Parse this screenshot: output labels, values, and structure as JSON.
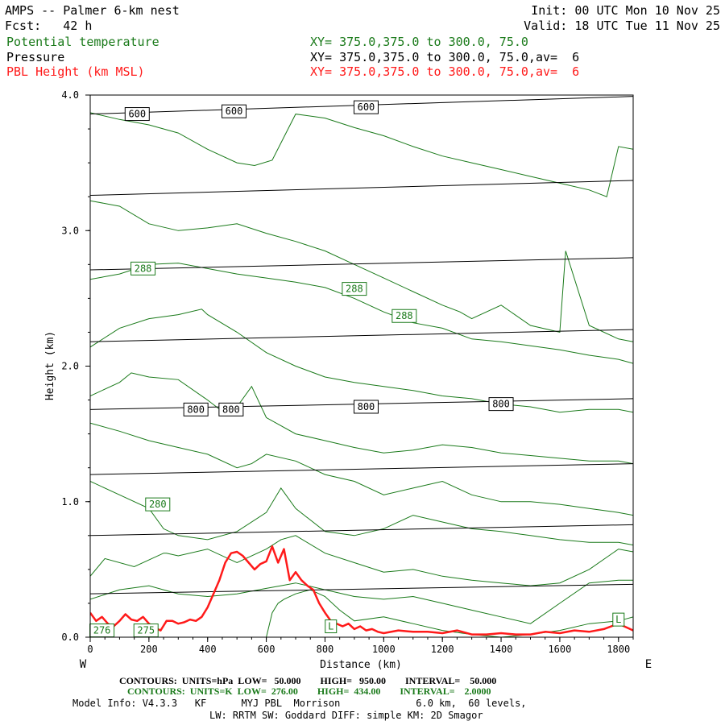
{
  "header": {
    "title": "AMPS -- Palmer 6-km nest",
    "fcst": "Fcst:   42 h",
    "init": "Init: 00 UTC Mon 10 Nov 25",
    "valid": "Valid: 18 UTC Tue 11 Nov 25",
    "fields": [
      {
        "name": "Potential temperature",
        "xy": "XY= 375.0,375.0 to 300.0, 75.0",
        "color": "#1a7a1a"
      },
      {
        "name": "Pressure",
        "xy": "XY= 375.0,375.0 to 300.0, 75.0,av=  6",
        "color": "#000000"
      },
      {
        "name": "PBL Height (km MSL)",
        "xy": "XY= 375.0,375.0 to 300.0, 75.0,av=  6",
        "color": "#ff1a1a"
      }
    ]
  },
  "footer": {
    "contours_pressure": "CONTOURS:  UNITS=hPa  LOW=   50.000        HIGH=   950.00        INTERVAL=    50.000",
    "contours_theta": "CONTOURS:  UNITS=K  LOW=  276.00        HIGH=  434.00        INTERVAL=    2.0000",
    "model_info_1": "Model Info: V4.3.3   KF      MYJ PBL  Morrison             6.0 km,  60 levels,",
    "model_info_2": "LW: RRTM SW: Goddard DIFF: simple KM: 2D Smagor"
  },
  "chart_data": {
    "type": "line",
    "xlabel": "Distance (km)",
    "ylabel": "Height (km)",
    "xlim": [
      0,
      1850
    ],
    "ylim": [
      0,
      4.0
    ],
    "x_ticks": [
      0,
      200,
      400,
      600,
      800,
      1000,
      1200,
      1400,
      1600,
      1800
    ],
    "y_ticks": [
      0.0,
      1.0,
      2.0,
      3.0,
      4.0
    ],
    "y_tick_labels": [
      "0.0",
      "1.0",
      "2.0",
      "3.0",
      "4.0"
    ],
    "left_end_label": "W",
    "right_end_label": "E",
    "pressure_isobars": [
      {
        "left": 3.86,
        "right": 3.99
      },
      {
        "left": 3.26,
        "right": 3.37
      },
      {
        "left": 2.71,
        "right": 2.8
      },
      {
        "left": 2.18,
        "right": 2.27
      },
      {
        "left": 1.68,
        "right": 1.76
      },
      {
        "left": 1.2,
        "right": 1.28
      },
      {
        "left": 0.75,
        "right": 0.83
      },
      {
        "left": 0.32,
        "right": 0.39
      }
    ],
    "pressure_labels": [
      {
        "text": "600",
        "x": 160,
        "y": 3.86
      },
      {
        "text": "600",
        "x": 490,
        "y": 3.88
      },
      {
        "text": "600",
        "x": 940,
        "y": 3.91
      },
      {
        "text": "800",
        "x": 360,
        "y": 1.68
      },
      {
        "text": "800",
        "x": 480,
        "y": 1.68
      },
      {
        "text": "800",
        "x": 940,
        "y": 1.7
      },
      {
        "text": "800",
        "x": 1400,
        "y": 1.72
      }
    ],
    "theta_contours": [
      {
        "x": [
          0,
          100,
          200,
          300,
          400,
          500,
          560,
          620,
          700,
          800,
          900,
          1000,
          1100,
          1200,
          1300,
          1400,
          1500,
          1600,
          1700,
          1760,
          1800,
          1850
        ],
        "y": [
          3.87,
          3.82,
          3.78,
          3.72,
          3.6,
          3.5,
          3.48,
          3.52,
          3.86,
          3.83,
          3.76,
          3.7,
          3.62,
          3.55,
          3.5,
          3.45,
          3.4,
          3.35,
          3.3,
          3.25,
          3.62,
          3.6
        ]
      },
      {
        "x": [
          0,
          100,
          200,
          300,
          400,
          500,
          600,
          700,
          800,
          900,
          1000,
          1100,
          1200,
          1260,
          1300,
          1400,
          1500,
          1600,
          1620,
          1700,
          1800,
          1850
        ],
        "y": [
          3.22,
          3.18,
          3.05,
          3.0,
          3.02,
          3.05,
          2.98,
          2.92,
          2.85,
          2.75,
          2.65,
          2.55,
          2.45,
          2.4,
          2.35,
          2.45,
          2.3,
          2.25,
          2.85,
          2.3,
          2.2,
          2.18
        ]
      },
      {
        "x": [
          0,
          100,
          200,
          300,
          400,
          500,
          600,
          700,
          800,
          900,
          1000,
          1100,
          1200,
          1300,
          1400,
          1500,
          1600,
          1700,
          1800,
          1850
        ],
        "y": [
          2.64,
          2.68,
          2.75,
          2.76,
          2.72,
          2.68,
          2.65,
          2.62,
          2.58,
          2.5,
          2.4,
          2.32,
          2.28,
          2.2,
          2.18,
          2.15,
          2.12,
          2.08,
          2.05,
          2.02
        ]
      },
      {
        "x": [
          0,
          100,
          200,
          300,
          380,
          400,
          500,
          600,
          700,
          800,
          900,
          1000,
          1100,
          1200,
          1300,
          1400,
          1500,
          1600,
          1700,
          1800,
          1850
        ],
        "y": [
          2.14,
          2.28,
          2.35,
          2.38,
          2.42,
          2.38,
          2.25,
          2.1,
          2.0,
          1.92,
          1.88,
          1.85,
          1.82,
          1.78,
          1.76,
          1.72,
          1.7,
          1.66,
          1.68,
          1.68,
          1.66
        ]
      },
      {
        "x": [
          0,
          100,
          140,
          200,
          300,
          400,
          460,
          500,
          550,
          600,
          700,
          800,
          900,
          1000,
          1100,
          1200,
          1300,
          1400,
          1500,
          1600,
          1700,
          1800,
          1850
        ],
        "y": [
          1.78,
          1.88,
          1.95,
          1.92,
          1.9,
          1.75,
          1.65,
          1.7,
          1.85,
          1.62,
          1.5,
          1.45,
          1.4,
          1.36,
          1.38,
          1.42,
          1.4,
          1.36,
          1.34,
          1.32,
          1.3,
          1.3,
          1.28
        ]
      },
      {
        "x": [
          0,
          100,
          200,
          300,
          400,
          500,
          550,
          600,
          700,
          800,
          900,
          1000,
          1100,
          1200,
          1300,
          1400,
          1500,
          1600,
          1700,
          1800,
          1850
        ],
        "y": [
          1.58,
          1.52,
          1.45,
          1.4,
          1.35,
          1.25,
          1.28,
          1.35,
          1.3,
          1.2,
          1.15,
          1.05,
          1.1,
          1.15,
          1.05,
          1.0,
          1.0,
          0.98,
          0.95,
          0.92,
          0.9
        ]
      },
      {
        "x": [
          0,
          100,
          200,
          250,
          300,
          400,
          500,
          600,
          650,
          700,
          800,
          900,
          1000,
          1100,
          1200,
          1300,
          1400,
          1500,
          1600,
          1700,
          1800,
          1850
        ],
        "y": [
          1.15,
          1.05,
          0.95,
          0.8,
          0.75,
          0.72,
          0.78,
          0.92,
          1.1,
          0.95,
          0.78,
          0.75,
          0.8,
          0.9,
          0.85,
          0.8,
          0.78,
          0.75,
          0.72,
          0.7,
          0.7,
          0.68
        ]
      },
      {
        "x": [
          0,
          50,
          150,
          250,
          260,
          300,
          400,
          500,
          600,
          650,
          700,
          800,
          900,
          1000,
          1100,
          1200,
          1300,
          1400,
          1500,
          1600,
          1700,
          1800,
          1850
        ],
        "y": [
          0.45,
          0.58,
          0.52,
          0.62,
          0.62,
          0.6,
          0.65,
          0.55,
          0.65,
          0.72,
          0.75,
          0.62,
          0.55,
          0.48,
          0.5,
          0.45,
          0.42,
          0.4,
          0.38,
          0.4,
          0.5,
          0.65,
          0.63
        ]
      },
      {
        "x": [
          0,
          100,
          200,
          300,
          400,
          500,
          600,
          650,
          700,
          800,
          900,
          1000,
          1100,
          1200,
          1300,
          1400,
          1500,
          1600,
          1700,
          1800,
          1850
        ],
        "y": [
          0.28,
          0.35,
          0.38,
          0.32,
          0.3,
          0.32,
          0.36,
          0.38,
          0.4,
          0.35,
          0.3,
          0.28,
          0.3,
          0.25,
          0.2,
          0.15,
          0.1,
          0.25,
          0.4,
          0.42,
          0.42
        ]
      },
      {
        "x": [
          600,
          620,
          640,
          660,
          700,
          750,
          800,
          850,
          900,
          1000,
          1100,
          1200,
          1300,
          1400,
          1500,
          1600,
          1700,
          1800,
          1850
        ],
        "y": [
          0.0,
          0.18,
          0.25,
          0.28,
          0.32,
          0.35,
          0.3,
          0.2,
          0.12,
          0.15,
          0.1,
          0.05,
          0.02,
          0.0,
          0.02,
          0.05,
          0.1,
          0.12,
          0.15
        ]
      }
    ],
    "theta_labels": [
      {
        "text": "288",
        "x": 180,
        "y": 2.72
      },
      {
        "text": "288",
        "x": 900,
        "y": 2.57
      },
      {
        "text": "288",
        "x": 1070,
        "y": 2.37
      },
      {
        "text": "280",
        "x": 230,
        "y": 0.98
      },
      {
        "text": "276",
        "x": 40,
        "y": 0.05
      },
      {
        "text": "275",
        "x": 190,
        "y": 0.05
      },
      {
        "text": "L",
        "x": 820,
        "y": 0.08
      },
      {
        "text": "L",
        "x": 1800,
        "y": 0.13
      }
    ],
    "series": [
      {
        "name": "PBL Height (km MSL)",
        "color": "#ff1a1a",
        "x": [
          0,
          20,
          40,
          60,
          80,
          100,
          120,
          140,
          160,
          180,
          200,
          220,
          240,
          260,
          280,
          300,
          320,
          340,
          360,
          380,
          400,
          420,
          440,
          460,
          480,
          500,
          520,
          540,
          560,
          580,
          600,
          620,
          640,
          660,
          680,
          700,
          720,
          740,
          760,
          780,
          800,
          820,
          840,
          860,
          880,
          900,
          920,
          940,
          960,
          980,
          1000,
          1050,
          1100,
          1150,
          1200,
          1250,
          1300,
          1350,
          1400,
          1450,
          1500,
          1550,
          1600,
          1650,
          1700,
          1750,
          1800,
          1850
        ],
        "y": [
          0.18,
          0.12,
          0.15,
          0.1,
          0.08,
          0.12,
          0.17,
          0.13,
          0.12,
          0.15,
          0.1,
          0.07,
          0.05,
          0.12,
          0.12,
          0.1,
          0.11,
          0.13,
          0.12,
          0.15,
          0.22,
          0.32,
          0.42,
          0.55,
          0.62,
          0.63,
          0.6,
          0.55,
          0.5,
          0.54,
          0.56,
          0.67,
          0.55,
          0.65,
          0.42,
          0.48,
          0.42,
          0.38,
          0.35,
          0.25,
          0.18,
          0.12,
          0.1,
          0.08,
          0.1,
          0.06,
          0.08,
          0.05,
          0.06,
          0.04,
          0.03,
          0.05,
          0.04,
          0.04,
          0.03,
          0.05,
          0.02,
          0.02,
          0.03,
          0.02,
          0.02,
          0.04,
          0.03,
          0.05,
          0.04,
          0.06,
          0.1,
          0.05
        ]
      }
    ]
  }
}
